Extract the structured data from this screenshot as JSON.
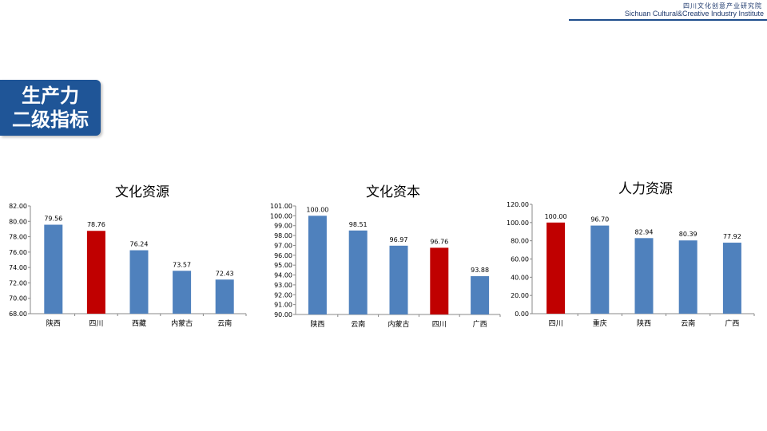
{
  "header": {
    "org_cn": "四川文化创意产业研究院",
    "org_en": "Sichuan Cultural&Creative Industry Institute"
  },
  "section": {
    "line1": "生产力",
    "line2": "二级指标"
  },
  "colors": {
    "bar_default": "#4f81bd",
    "bar_highlight": "#c00000",
    "brand_blue": "#1f5597",
    "header_line": "#1f4e8c"
  },
  "chart_data": [
    {
      "type": "bar",
      "title": "文化资源",
      "categories": [
        "陕西",
        "四川",
        "西藏",
        "内蒙古",
        "云南"
      ],
      "values": [
        79.56,
        78.76,
        76.24,
        73.57,
        72.43
      ],
      "labels": [
        "79.56",
        "78.76",
        "76.24",
        "73.57",
        "72.43"
      ],
      "highlight": [
        "四川"
      ],
      "ylim": [
        68,
        82
      ],
      "yticks": [
        "68.00",
        "70.00",
        "72.00",
        "74.00",
        "76.00",
        "78.00",
        "80.00",
        "82.00"
      ],
      "grid": false
    },
    {
      "type": "bar",
      "title": "文化资本",
      "categories": [
        "陕西",
        "云南",
        "内蒙古",
        "四川",
        "广西"
      ],
      "values": [
        100.0,
        98.51,
        96.97,
        96.76,
        93.88
      ],
      "labels": [
        "100.00",
        "98.51",
        "96.97",
        "96.76",
        "93.88"
      ],
      "highlight": [
        "四川"
      ],
      "ylim": [
        90,
        101
      ],
      "yticks": [
        "90.00",
        "91.00",
        "92.00",
        "93.00",
        "94.00",
        "95.00",
        "96.00",
        "97.00",
        "98.00",
        "99.00",
        "100.00",
        "101.00"
      ],
      "grid": false
    },
    {
      "type": "bar",
      "title": "人力资源",
      "categories": [
        "四川",
        "重庆",
        "陕西",
        "云南",
        "广西"
      ],
      "values": [
        100.0,
        96.7,
        82.94,
        80.39,
        77.92
      ],
      "labels": [
        "100.00",
        "96.70",
        "82.94",
        "80.39",
        "77.92"
      ],
      "highlight": [
        "四川"
      ],
      "ylim": [
        0,
        120
      ],
      "yticks": [
        "0.00",
        "20.00",
        "40.00",
        "60.00",
        "80.00",
        "100.00",
        "120.00"
      ],
      "grid": false
    }
  ]
}
